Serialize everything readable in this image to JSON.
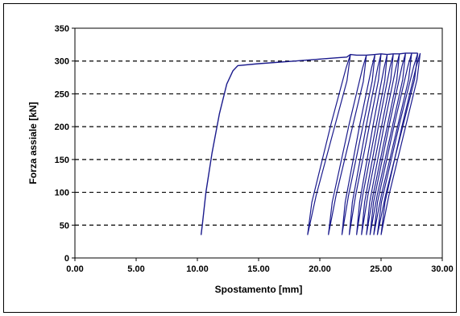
{
  "chart_data": {
    "type": "line",
    "title": "",
    "xlabel": "Spostamento [mm]",
    "ylabel": "Forza assiale [kN]",
    "xlim": [
      0,
      30
    ],
    "ylim": [
      0,
      350
    ],
    "x_ticks": [
      "0.00",
      "5.00",
      "10.00",
      "15.00",
      "20.00",
      "25.00",
      "30.00"
    ],
    "y_ticks": [
      "0",
      "50",
      "100",
      "150",
      "200",
      "250",
      "300",
      "350"
    ],
    "grid": "horizontal-dashed",
    "legend": "none",
    "series_color": "#1a1a8c",
    "series": [
      {
        "x": [
          10.3,
          10.4,
          10.7,
          11.2,
          11.8,
          12.4,
          12.9,
          13.3,
          15.0,
          18.0,
          20.0,
          21.5,
          22.2,
          22.5,
          23.0,
          23.8,
          24.5,
          25.0,
          25.5,
          26.0,
          26.5,
          27.0,
          27.5,
          28.0
        ],
        "y": [
          35,
          50,
          100,
          160,
          220,
          265,
          285,
          293,
          296,
          300,
          303,
          305,
          306,
          310,
          309,
          309,
          310,
          311,
          310,
          311,
          311,
          312,
          312,
          312
        ]
      }
    ],
    "cycles": [
      {
        "x_min": 19.0,
        "x_max": 22.5,
        "y_min": 35,
        "y_max": 310
      },
      {
        "x_min": 20.7,
        "x_max": 23.8,
        "y_min": 35,
        "y_max": 309
      },
      {
        "x_min": 21.8,
        "x_max": 24.5,
        "y_min": 35,
        "y_max": 310
      },
      {
        "x_min": 22.4,
        "x_max": 25.0,
        "y_min": 35,
        "y_max": 311
      },
      {
        "x_min": 23.0,
        "x_max": 25.5,
        "y_min": 35,
        "y_max": 310
      },
      {
        "x_min": 23.4,
        "x_max": 26.0,
        "y_min": 35,
        "y_max": 311
      },
      {
        "x_min": 23.8,
        "x_max": 26.5,
        "y_min": 35,
        "y_max": 311
      },
      {
        "x_min": 24.1,
        "x_max": 27.0,
        "y_min": 35,
        "y_max": 312
      },
      {
        "x_min": 24.4,
        "x_max": 27.5,
        "y_min": 35,
        "y_max": 312
      },
      {
        "x_min": 24.7,
        "x_max": 28.0,
        "y_min": 35,
        "y_max": 312
      },
      {
        "x_min": 25.0,
        "x_max": 28.2,
        "y_min": 35,
        "y_max": 312
      }
    ]
  }
}
